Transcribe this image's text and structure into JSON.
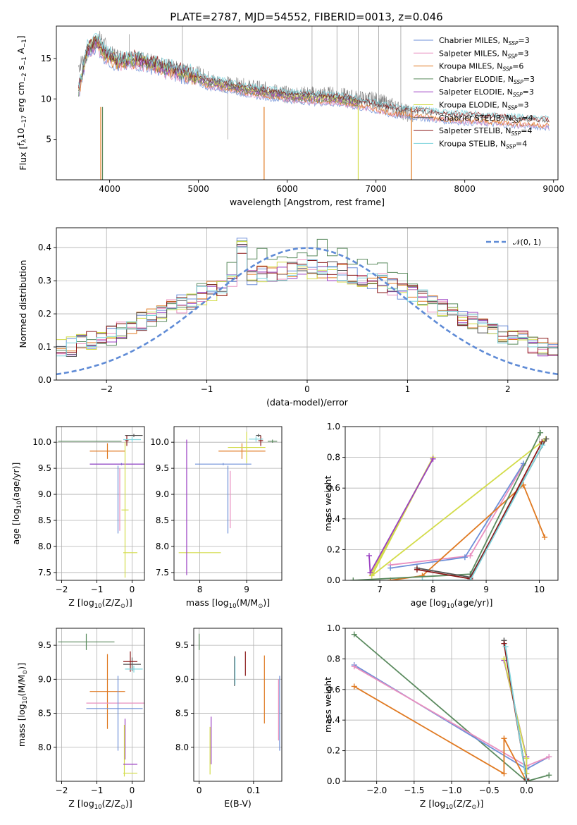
{
  "figure_title": "PLATE=2787, MJD=54552, FIBERID=0013, z=0.046",
  "colors": {
    "Chabrier MILES": "#6e8fd8",
    "Salpeter MILES": "#e98fbf",
    "Kroupa MILES": "#e07a22",
    "Chabrier ELODIE": "#5a8a5e",
    "Salpeter ELODIE": "#9a3fc2",
    "Kroupa ELODIE": "#d3dc4a",
    "Chabrier STELIB": "#555555",
    "Salpeter STELIB": "#8b1a1a",
    "Kroupa STELIB": "#7fd4dd",
    "normal": "#5f8bd6",
    "observed": "#808080"
  },
  "chart_data": [
    {
      "type": "line",
      "id": "spectrum",
      "xlabel": "wavelength [Angstrom, rest frame]",
      "ylabel_parts": [
        "Flux [",
        "f",
        "λ",
        "10",
        "−17",
        " erg cm",
        "−2",
        " s",
        "−1",
        " A",
        "−1",
        "]"
      ],
      "xlim": [
        3400,
        9050
      ],
      "ylim": [
        0,
        19
      ],
      "xticks": [
        4000,
        5000,
        6000,
        7000,
        8000,
        9000
      ],
      "yticks": [
        5,
        10,
        15
      ],
      "grid": false,
      "legend_position": "right",
      "series_names": [
        "Chabrier MILES",
        "Salpeter MILES",
        "Kroupa MILES",
        "Chabrier ELODIE",
        "Salpeter ELODIE",
        "Kroupa ELODIE",
        "Chabrier STELIB",
        "Salpeter STELIB",
        "Kroupa STELIB"
      ],
      "legend_labels": [
        {
          "name": "Chabrier MILES",
          "n": "3"
        },
        {
          "name": "Salpeter MILES",
          "n": "3"
        },
        {
          "name": "Kroupa MILES",
          "n": "6"
        },
        {
          "name": "Chabrier ELODIE",
          "n": "3"
        },
        {
          "name": "Salpeter ELODIE",
          "n": "3"
        },
        {
          "name": "Kroupa ELODIE",
          "n": "3"
        },
        {
          "name": "Chabrier STELIB",
          "n": "4"
        },
        {
          "name": "Salpeter STELIB",
          "n": "4"
        },
        {
          "name": "Kroupa STELIB",
          "n": "4"
        }
      ],
      "observed_approx": [
        [
          3650,
          14
        ],
        [
          3800,
          16.5
        ],
        [
          3900,
          17.5
        ],
        [
          4000,
          15.5
        ],
        [
          4200,
          15
        ],
        [
          4500,
          14.5
        ],
        [
          4800,
          13.5
        ],
        [
          5000,
          13
        ],
        [
          5200,
          12
        ],
        [
          5500,
          11.5
        ],
        [
          5800,
          11
        ],
        [
          6000,
          10.5
        ],
        [
          6300,
          10.5
        ],
        [
          6500,
          10.5
        ],
        [
          6800,
          10
        ],
        [
          7000,
          9.8
        ],
        [
          7200,
          9
        ],
        [
          7400,
          8
        ]
      ],
      "model_approx": [
        [
          3650,
          11
        ],
        [
          3750,
          16
        ],
        [
          3850,
          17
        ],
        [
          3950,
          15.5
        ],
        [
          4100,
          14.5
        ],
        [
          4300,
          14.8
        ],
        [
          4500,
          14.3
        ],
        [
          4700,
          13.5
        ],
        [
          4900,
          13
        ],
        [
          5100,
          12
        ],
        [
          5300,
          11.7
        ],
        [
          5500,
          11.2
        ],
        [
          5700,
          10.8
        ],
        [
          6000,
          10.4
        ],
        [
          6300,
          10.1
        ],
        [
          6600,
          9.9
        ],
        [
          6900,
          9.3
        ],
        [
          7200,
          8.5
        ],
        [
          7500,
          8.2
        ],
        [
          7800,
          7.8
        ],
        [
          8100,
          7.6
        ],
        [
          8400,
          7.4
        ],
        [
          8700,
          7.2
        ],
        [
          8950,
          7
        ]
      ]
    },
    {
      "type": "histogram",
      "id": "residuals",
      "xlabel": "(data-model)/error",
      "ylabel": "Normed distribution",
      "xlim": [
        -2.5,
        2.5
      ],
      "ylim": [
        0,
        0.46
      ],
      "xticks": [
        -2,
        -1,
        0,
        1,
        2
      ],
      "yticks": [
        0.0,
        0.1,
        0.2,
        0.3,
        0.4
      ],
      "grid": true,
      "legend_position": "top-right",
      "legend_label": "𝒩(0, 1)",
      "normal_curve": {
        "mean": 0,
        "sigma": 1
      },
      "bin_edges_range": [
        -2.5,
        2.5
      ],
      "n_bins": 50,
      "typical_peak": 0.44
    },
    {
      "type": "errorbar",
      "id": "age-vs-metallicity",
      "xlabel_parts": [
        "Z [log",
        "10",
        "(Z/Z",
        "⊙",
        ")]"
      ],
      "ylabel_parts": [
        "age  [log",
        "10",
        "(age/yr)]"
      ],
      "xlim": [
        -2.15,
        0.35
      ],
      "ylim": [
        7.35,
        10.3
      ],
      "xticks": [
        -2,
        -1,
        0
      ],
      "yticks": [
        7.5,
        8.0,
        8.5,
        9.0,
        9.5,
        10.0
      ],
      "grid": true,
      "points": [
        {
          "s": "Chabrier ELODIE",
          "x": -1.2,
          "xe": 0.9,
          "y": 10.02,
          "ye": 0.0
        },
        {
          "s": "Kroupa MILES",
          "x": -0.7,
          "xe": 0.5,
          "y": 9.83,
          "ye": 0.15
        },
        {
          "s": "Chabrier MILES",
          "x": -0.3,
          "xe": 0.9,
          "y": 9.58,
          "ye": 0.02
        },
        {
          "s": "Salpeter ELODIE",
          "x": -0.3,
          "xe": 0.9,
          "y": 9.58,
          "ye": 0.0
        },
        {
          "s": "Chabrier MILES",
          "x": -0.4,
          "xe": 0.0,
          "y": 8.9,
          "ye": 0.65
        },
        {
          "s": "Salpeter MILES",
          "x": -0.35,
          "xe": 0.0,
          "y": 8.9,
          "ye": 0.6
        },
        {
          "s": "Kroupa ELODIE",
          "x": -0.2,
          "xe": 0.1,
          "y": 8.7,
          "ye": 1.3
        },
        {
          "s": "Kroupa ELODIE",
          "x": -0.05,
          "xe": 0.2,
          "y": 7.88,
          "ye": 0.0
        },
        {
          "s": "Chabrier STELIB",
          "x": 0.05,
          "xe": 0.25,
          "y": 10.13,
          "ye": 0.03
        },
        {
          "s": "Salpeter STELIB",
          "x": -0.15,
          "xe": 0.05,
          "y": 10.03,
          "ye": 0.1
        },
        {
          "s": "Kroupa STELIB",
          "x": 0.0,
          "xe": 0.25,
          "y": 10.05,
          "ye": 0.05
        }
      ]
    },
    {
      "type": "errorbar",
      "id": "age-vs-mass",
      "xlabel_parts": [
        "mass [log",
        "10",
        "(M/M",
        "⊙",
        ")]"
      ],
      "xlim": [
        7.45,
        9.75
      ],
      "ylim": [
        7.35,
        10.3
      ],
      "xticks": [
        8,
        9
      ],
      "yticks": [
        7.5,
        8.0,
        8.5,
        9.0,
        9.5,
        10.0
      ],
      "grid": true,
      "points": [
        {
          "s": "Kroupa ELODIE",
          "x": 8.0,
          "xe": 0.45,
          "y": 7.88,
          "ye": 0.0
        },
        {
          "s": "Salpeter ELODIE",
          "x": 7.72,
          "xe": 0.0,
          "y": 8.75,
          "ye": 1.3
        },
        {
          "s": "Chabrier MILES",
          "x": 8.6,
          "xe": 0.0,
          "y": 8.9,
          "ye": 0.65
        },
        {
          "s": "Salpeter MILES",
          "x": 8.65,
          "xe": 0.0,
          "y": 8.9,
          "ye": 0.55
        },
        {
          "s": "Chabrier MILES",
          "x": 8.5,
          "xe": 0.6,
          "y": 9.58,
          "ye": 0.02
        },
        {
          "s": "Kroupa MILES",
          "x": 8.9,
          "xe": 0.5,
          "y": 9.83,
          "ye": 0.15
        },
        {
          "s": "Kroupa ELODIE",
          "x": 9.0,
          "xe": 0.4,
          "y": 9.9,
          "ye": 0.3
        },
        {
          "s": "Chabrier STELIB",
          "x": 9.25,
          "xe": 0.05,
          "y": 10.13,
          "ye": 0.03
        },
        {
          "s": "Salpeter STELIB",
          "x": 9.3,
          "xe": 0.05,
          "y": 10.03,
          "ye": 0.1
        },
        {
          "s": "Kroupa STELIB",
          "x": 9.2,
          "xe": 0.15,
          "y": 10.06,
          "ye": 0.05
        },
        {
          "s": "Chabrier ELODIE",
          "x": 9.55,
          "xe": 0.1,
          "y": 10.02,
          "ye": 0.03
        }
      ]
    },
    {
      "type": "line",
      "id": "mass-weight-vs-age",
      "xlabel_parts": [
        "age  [log",
        "10",
        "(age/yr)]"
      ],
      "ylabel": "mass weight",
      "xlim": [
        6.35,
        10.35
      ],
      "ylim": [
        0,
        1
      ],
      "xticks": [
        7,
        8,
        9,
        10
      ],
      "yticks": [
        0.0,
        0.2,
        0.4,
        0.6,
        0.8,
        1.0
      ],
      "grid": true,
      "series": [
        {
          "name": "Kroupa ELODIE",
          "x": [
            6.85,
            8.0,
            6.85,
            10.12
          ],
          "y": [
            0.05,
            0.8,
            0.03,
            0.92
          ]
        },
        {
          "name": "Salpeter ELODIE",
          "x": [
            6.8,
            6.82,
            8.0
          ],
          "y": [
            0.16,
            0.05,
            0.79
          ]
        },
        {
          "name": "Salpeter MILES",
          "x": [
            7.2,
            8.7,
            9.7
          ],
          "y": [
            0.1,
            0.16,
            0.75
          ]
        },
        {
          "name": "Chabrier MILES",
          "x": [
            7.2,
            8.6,
            9.7
          ],
          "y": [
            0.08,
            0.15,
            0.76
          ]
        },
        {
          "name": "Kroupa MILES",
          "x": [
            7.2,
            7.8,
            9.7,
            10.1
          ],
          "y": [
            0.0,
            0.03,
            0.62,
            0.28
          ]
        },
        {
          "name": "Chabrier ELODIE",
          "x": [
            6.5,
            8.7,
            10.02
          ],
          "y": [
            0.0,
            0.04,
            0.96
          ]
        },
        {
          "name": "Chabrier STELIB",
          "x": [
            7.7,
            8.7,
            10.13
          ],
          "y": [
            0.08,
            0.02,
            0.92
          ]
        },
        {
          "name": "Salpeter STELIB",
          "x": [
            7.7,
            8.7,
            10.05
          ],
          "y": [
            0.07,
            0.01,
            0.9
          ]
        },
        {
          "name": "Kroupa STELIB",
          "x": [
            7.8,
            8.7,
            10.06
          ],
          "y": [
            0.0,
            0.0,
            0.88
          ]
        }
      ]
    },
    {
      "type": "errorbar",
      "id": "mass-vs-metallicity",
      "xlabel_parts": [
        "Z [log",
        "10",
        "(Z/Z",
        "⊙",
        ")]"
      ],
      "ylabel_parts": [
        "mass [log",
        "10",
        "(M/M",
        "⊙",
        ")]"
      ],
      "xlim": [
        -2.15,
        0.35
      ],
      "ylim": [
        7.5,
        9.75
      ],
      "xticks": [
        -2,
        -1,
        0
      ],
      "yticks": [
        8.0,
        8.5,
        9.0,
        9.5
      ],
      "grid": true,
      "points": [
        {
          "s": "Chabrier ELODIE",
          "x": -1.3,
          "xe": 0.8,
          "y": 9.55,
          "ye": 0.12
        },
        {
          "s": "Kroupa MILES",
          "x": -0.7,
          "xe": 0.5,
          "y": 8.82,
          "ye": 0.55
        },
        {
          "s": "Salpeter MILES",
          "x": -0.4,
          "xe": 0.9,
          "y": 8.65,
          "ye": 0.0
        },
        {
          "s": "Chabrier MILES",
          "x": -0.5,
          "xe": 0.8,
          "y": 8.57,
          "ye": 0.0
        },
        {
          "s": "Chabrier MILES",
          "x": -0.4,
          "xe": 0.0,
          "y": 8.5,
          "ye": 0.55
        },
        {
          "s": "Salpeter ELODIE",
          "x": -0.2,
          "xe": 0.0,
          "y": 8.12,
          "ye": 0.3
        },
        {
          "s": "Kroupa ELODIE",
          "x": -0.22,
          "xe": 0.0,
          "y": 7.95,
          "ye": 0.38
        },
        {
          "s": "Salpeter ELODIE",
          "x": -0.05,
          "xe": 0.2,
          "y": 7.75,
          "ye": 0.0
        },
        {
          "s": "Kroupa ELODIE",
          "x": -0.05,
          "xe": 0.2,
          "y": 7.62,
          "ye": 0.0
        },
        {
          "s": "Chabrier STELIB",
          "x": 0.0,
          "xe": 0.25,
          "y": 9.22,
          "ye": 0.1
        },
        {
          "s": "Salpeter STELIB",
          "x": -0.05,
          "xe": 0.2,
          "y": 9.26,
          "ye": 0.15
        },
        {
          "s": "Kroupa STELIB",
          "x": 0.05,
          "xe": 0.25,
          "y": 9.15,
          "ye": 0.05
        }
      ]
    },
    {
      "type": "errorbar",
      "id": "mass-vs-ebv",
      "xlabel": "E(B-V)",
      "xlim": [
        -0.01,
        0.152
      ],
      "ylim": [
        7.5,
        9.75
      ],
      "xticks": [
        0.0,
        0.1
      ],
      "yticks": [
        8.0,
        8.5,
        9.0,
        9.5
      ],
      "grid": true,
      "points": [
        {
          "s": "Chabrier ELODIE",
          "x": 0.0,
          "xe": 0.0,
          "y": 9.55,
          "ye": 0.12
        },
        {
          "s": "Salpeter ELODIE",
          "x": 0.022,
          "xe": 0.0,
          "y": 8.1,
          "ye": 0.35
        },
        {
          "s": "Kroupa ELODIE",
          "x": 0.02,
          "xe": 0.0,
          "y": 7.95,
          "ye": 0.35
        },
        {
          "s": "Chabrier MILES",
          "x": 0.148,
          "xe": 0.0,
          "y": 8.5,
          "ye": 0.55
        },
        {
          "s": "Salpeter MILES",
          "x": 0.146,
          "xe": 0.0,
          "y": 8.55,
          "ye": 0.45
        },
        {
          "s": "Kroupa MILES",
          "x": 0.12,
          "xe": 0.0,
          "y": 8.85,
          "ye": 0.5
        },
        {
          "s": "Chabrier STELIB",
          "x": 0.065,
          "xe": 0.0,
          "y": 9.12,
          "ye": 0.22
        },
        {
          "s": "Salpeter STELIB",
          "x": 0.085,
          "xe": 0.0,
          "y": 9.23,
          "ye": 0.18
        },
        {
          "s": "Kroupa STELIB",
          "x": 0.066,
          "xe": 0.0,
          "y": 9.12,
          "ye": 0.2
        }
      ]
    },
    {
      "type": "line",
      "id": "mass-weight-vs-metallicity",
      "xlabel_parts": [
        "Z [log",
        "10",
        "(Z/Z",
        "⊙",
        ")]"
      ],
      "ylabel": "mass weight",
      "xlim": [
        -2.42,
        0.42
      ],
      "ylim": [
        0,
        1
      ],
      "xticks": [
        -2.0,
        -1.5,
        -1.0,
        -0.5,
        0.0
      ],
      "yticks": [
        0.0,
        0.2,
        0.4,
        0.6,
        0.8,
        1.0
      ],
      "grid": true,
      "series": [
        {
          "name": "Chabrier ELODIE",
          "x": [
            -2.3,
            0.0,
            0.3
          ],
          "y": [
            0.96,
            0.0,
            0.04
          ]
        },
        {
          "name": "Chabrier MILES",
          "x": [
            -2.3,
            0.0,
            0.3
          ],
          "y": [
            0.76,
            0.08,
            0.16
          ]
        },
        {
          "name": "Salpeter MILES",
          "x": [
            -2.3,
            0.0,
            0.3
          ],
          "y": [
            0.75,
            0.1,
            0.16
          ]
        },
        {
          "name": "Kroupa MILES",
          "x": [
            -2.3,
            -0.3,
            -0.3,
            0.0
          ],
          "y": [
            0.62,
            0.05,
            0.28,
            0.0
          ]
        },
        {
          "name": "Salpeter ELODIE",
          "x": [
            -0.3,
            0.0,
            0.0
          ],
          "y": [
            0.79,
            0.16,
            0.05
          ]
        },
        {
          "name": "Kroupa ELODIE",
          "x": [
            -0.3,
            0.0,
            0.0
          ],
          "y": [
            0.8,
            0.15,
            0.05
          ]
        },
        {
          "name": "Chabrier STELIB",
          "x": [
            -0.3,
            0.0
          ],
          "y": [
            0.92,
            0.02
          ]
        },
        {
          "name": "Salpeter STELIB",
          "x": [
            -0.3,
            0.0
          ],
          "y": [
            0.9,
            0.01
          ]
        },
        {
          "name": "Kroupa STELIB",
          "x": [
            -0.28,
            0.0
          ],
          "y": [
            0.88,
            0.0
          ]
        }
      ]
    }
  ]
}
